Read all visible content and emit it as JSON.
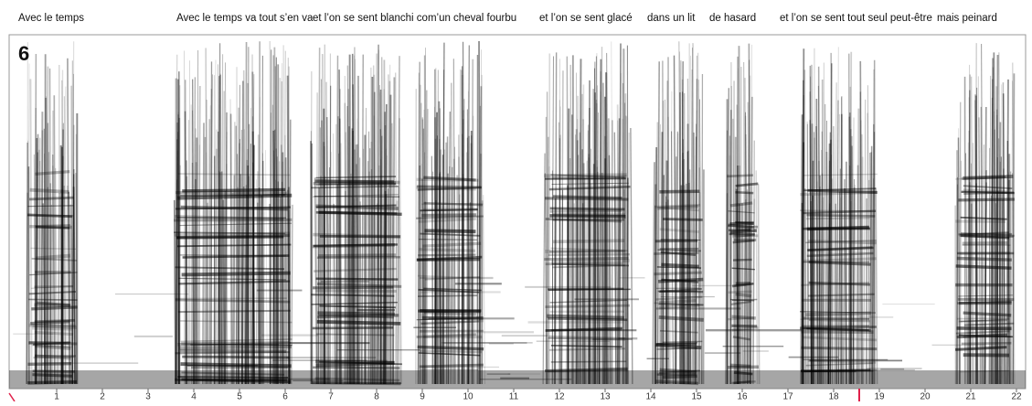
{
  "chart_data": {
    "type": "spectrogram",
    "panel_label": "6",
    "annotations": [
      "Avec le temps",
      "Avec le temps va tout s’en va",
      "et l’on se sent blanchi com’un cheval fourbu",
      "et l’on se sent glacé",
      "dans un lit",
      "de hasard",
      "et l’on se sent tout seul peut-être",
      "mais peinard"
    ],
    "xlim": [
      -0.04,
      22.2
    ],
    "xticks": [
      1,
      2,
      3,
      4,
      5,
      6,
      7,
      8,
      9,
      10,
      11,
      12,
      13,
      14,
      15,
      16,
      17,
      18,
      19,
      20,
      21,
      22
    ]
  }
}
